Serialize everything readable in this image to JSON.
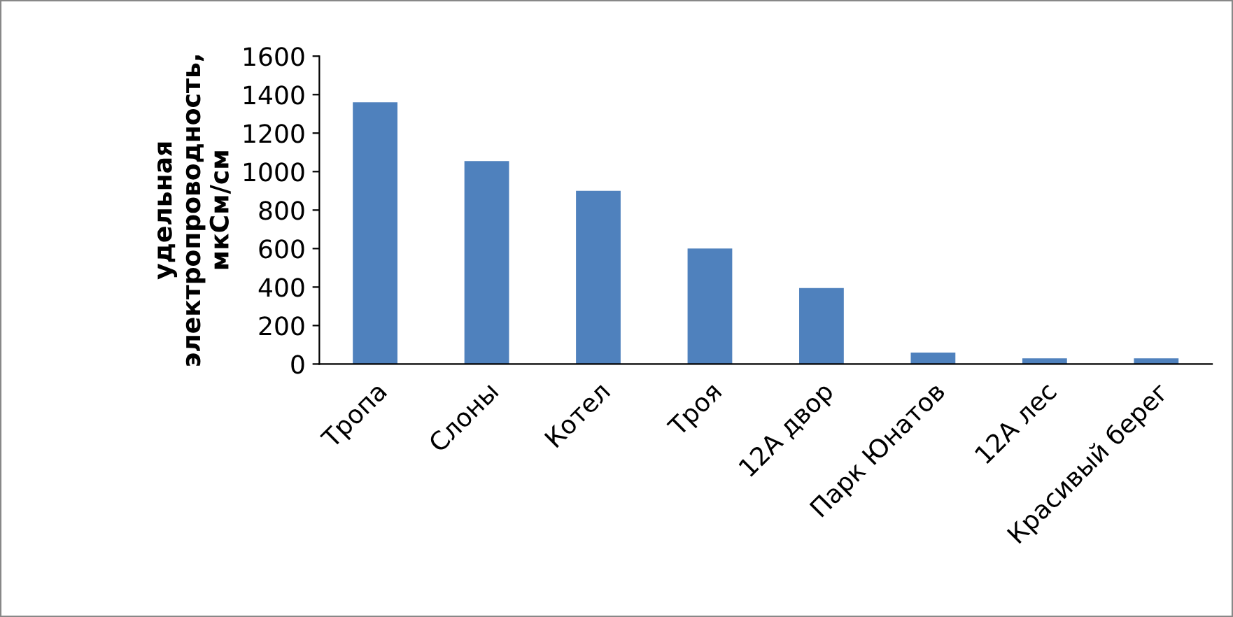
{
  "chart_data": {
    "type": "bar",
    "ylabel": "удельная электропроводность, мкСм/см",
    "categories": [
      "Тропа",
      "Слоны",
      "Котел",
      "Троя",
      "12А двор",
      "Парк Юнатов",
      "12А лес",
      "Красивый берег"
    ],
    "values": [
      1360,
      1055,
      900,
      600,
      395,
      60,
      30,
      30
    ],
    "color": "#4f81bd",
    "ylim": [
      0,
      1600
    ],
    "yticks": [
      0,
      200,
      400,
      600,
      800,
      1000,
      1200,
      1400,
      1600
    ],
    "grid": false,
    "legend": false
  }
}
